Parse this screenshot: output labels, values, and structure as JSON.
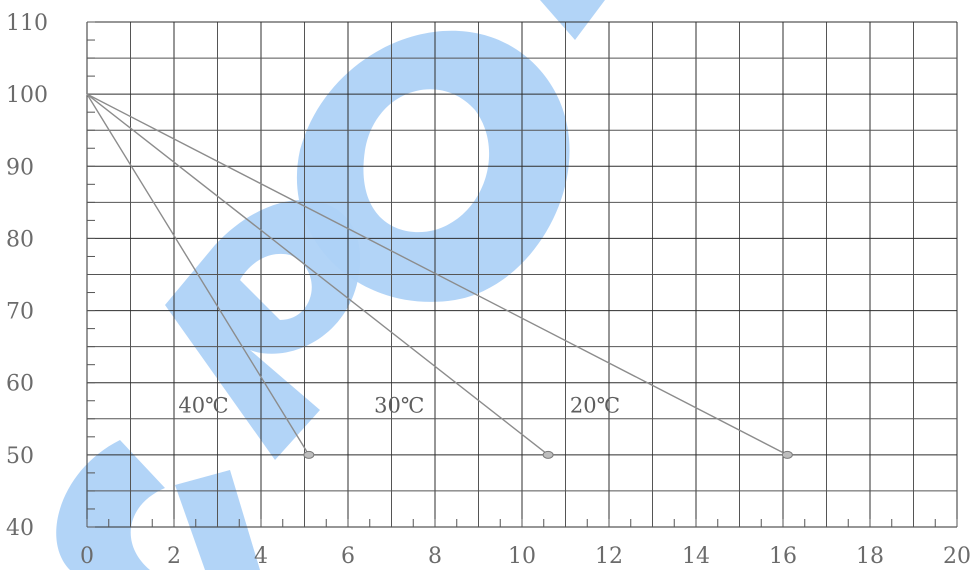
{
  "chart_data": {
    "type": "line",
    "title": "",
    "xlabel": "",
    "ylabel": "",
    "xlim": [
      0,
      20
    ],
    "ylim": [
      40,
      110
    ],
    "xticks": [
      "0",
      "2",
      "4",
      "6",
      "8",
      "10",
      "12",
      "14",
      "16",
      "18",
      "20"
    ],
    "yticks": [
      "110",
      "100",
      "90",
      "80",
      "70",
      "60",
      "50",
      "40"
    ],
    "grid": true,
    "legend": "none",
    "series": [
      {
        "name": "40℃",
        "x": [
          0,
          5.1
        ],
        "y": [
          100,
          50
        ]
      },
      {
        "name": "30℃",
        "x": [
          0,
          10.6
        ],
        "y": [
          100,
          50
        ]
      },
      {
        "name": "20℃",
        "x": [
          0,
          16.1
        ],
        "y": [
          100,
          50
        ]
      }
    ],
    "annotations": [
      {
        "text": "40℃",
        "x": 2.1,
        "y": 57
      },
      {
        "text": "30℃",
        "x": 6.6,
        "y": 57
      },
      {
        "text": "20℃",
        "x": 11.1,
        "y": 57
      }
    ]
  },
  "watermark": {
    "text": "C-POL",
    "color": "#aed2f7"
  }
}
